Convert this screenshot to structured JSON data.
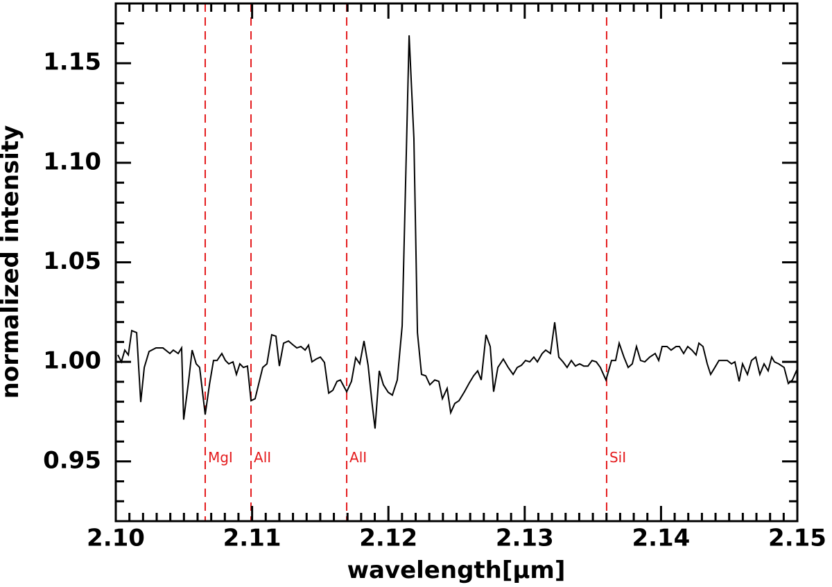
{
  "chart_data": {
    "type": "line",
    "xlabel": "wavelength[μm]",
    "ylabel": "normalized intensity",
    "xlim": [
      2.1,
      2.15
    ],
    "ylim": [
      0.92,
      1.18
    ],
    "xticks": [
      {
        "value": 2.1,
        "label": "2.10"
      },
      2.11,
      2.12,
      2.13,
      2.14,
      2.15
    ],
    "yticks": [
      0.95,
      {
        "value": 1.0,
        "label": "1.00"
      },
      1.05,
      {
        "value": 1.1,
        "label": "1.10"
      },
      1.15
    ],
    "xminorticks": [
      2.101,
      2.102,
      2.103,
      2.104,
      2.105,
      2.106,
      2.107,
      2.108,
      2.109,
      2.111,
      2.112,
      2.113,
      2.114,
      2.115,
      2.116,
      2.117,
      2.118,
      2.119,
      2.121,
      2.122,
      2.123,
      2.124,
      2.125,
      2.126,
      2.127,
      2.128,
      2.129,
      2.131,
      2.132,
      2.133,
      2.134,
      2.135,
      2.136,
      2.137,
      2.138,
      2.139,
      2.141,
      2.142,
      2.143,
      2.144,
      2.145,
      2.146,
      2.147,
      2.148,
      2.149
    ],
    "yminorticks": [
      0.93,
      0.94,
      0.96,
      0.97,
      0.98,
      0.99,
      1.01,
      1.02,
      1.03,
      1.04,
      1.06,
      1.07,
      1.08,
      1.09,
      1.11,
      1.12,
      1.13,
      1.14,
      1.16,
      1.17
    ],
    "color": "#000000",
    "x": [
      2.10015,
      2.10041,
      2.10066,
      2.10092,
      2.10117,
      2.10153,
      2.10183,
      2.10209,
      2.10244,
      2.10295,
      2.10346,
      2.10397,
      2.10422,
      2.10458,
      2.10483,
      2.10498,
      2.10534,
      2.1056,
      2.1059,
      2.10615,
      2.10656,
      2.10687,
      2.10717,
      2.10743,
      2.10778,
      2.10804,
      2.10829,
      2.1086,
      2.10885,
      2.1091,
      2.10936,
      2.10966,
      2.10992,
      2.11022,
      2.11053,
      2.11078,
      2.11109,
      2.11144,
      2.11175,
      2.112,
      2.11231,
      2.11267,
      2.11297,
      2.11328,
      2.11358,
      2.11389,
      2.11414,
      2.11439,
      2.1147,
      2.11501,
      2.11531,
      2.11562,
      2.11592,
      2.11623,
      2.11648,
      2.11694,
      2.11729,
      2.1176,
      2.1179,
      2.11821,
      2.11851,
      2.11882,
      2.11902,
      2.11933,
      2.11963,
      2.11999,
      2.12029,
      2.12065,
      2.12101,
      2.12152,
      2.12187,
      2.12213,
      2.12243,
      2.12274,
      2.12304,
      2.1234,
      2.1237,
      2.12396,
      2.12431,
      2.12457,
      2.12487,
      2.12518,
      2.12558,
      2.12594,
      2.12625,
      2.12655,
      2.12681,
      2.12716,
      2.12747,
      2.12772,
      2.12803,
      2.12843,
      2.12879,
      2.12915,
      2.12945,
      2.12976,
      2.13006,
      2.13037,
      2.13067,
      2.13093,
      2.13128,
      2.13154,
      2.13189,
      2.1322,
      2.1325,
      2.13281,
      2.13311,
      2.13342,
      2.13372,
      2.13403,
      2.13433,
      2.13464,
      2.13494,
      2.13525,
      2.13555,
      2.13596,
      2.13637,
      2.13667,
      2.13693,
      2.13728,
      2.13759,
      2.13789,
      2.1382,
      2.1385,
      2.13881,
      2.13917,
      2.13957,
      2.13983,
      2.14008,
      2.14044,
      2.14074,
      2.1411,
      2.14135,
      2.14166,
      2.14196,
      2.14227,
      2.14257,
      2.14278,
      2.14308,
      2.14339,
      2.14364,
      2.14395,
      2.14425,
      2.14456,
      2.14486,
      2.14517,
      2.14542,
      2.14573,
      2.14598,
      2.14634,
      2.14664,
      2.14695,
      2.14725,
      2.14756,
      2.14786,
      2.14812,
      2.14832,
      2.14863,
      2.14903,
      2.14934,
      2.14964,
      2.15
    ],
    "values": [
      1.0035,
      1.0,
      1.0059,
      1.0035,
      1.0157,
      1.0147,
      0.9798,
      0.9972,
      1.0052,
      1.007,
      1.007,
      1.0042,
      1.0059,
      1.0042,
      1.007,
      0.971,
      0.9902,
      1.0059,
      0.999,
      0.9972,
      0.9735,
      0.9885,
      1.0007,
      1.0007,
      1.0042,
      1.0007,
      0.999,
      1.0,
      0.9937,
      0.999,
      0.9972,
      0.9979,
      0.9805,
      0.9815,
      0.9902,
      0.9972,
      0.999,
      1.0136,
      1.0129,
      0.9979,
      1.0094,
      1.0105,
      1.0087,
      1.007,
      1.0077,
      1.0059,
      1.0084,
      1.0,
      1.0014,
      1.0024,
      0.9997,
      0.9843,
      0.9857,
      0.9902,
      0.9909,
      0.985,
      0.9902,
      1.0021,
      0.999,
      1.0105,
      0.9983,
      0.978,
      0.9665,
      0.9955,
      0.9885,
      0.9847,
      0.9833,
      0.9909,
      1.0181,
      1.164,
      1.1123,
      1.0147,
      0.9937,
      0.993,
      0.9885,
      0.9909,
      0.9902,
      0.9815,
      0.9867,
      0.9745,
      0.9791,
      0.9805,
      0.985,
      0.9895,
      0.993,
      0.9955,
      0.9909,
      1.0136,
      1.0077,
      0.985,
      0.9972,
      1.0014,
      0.9972,
      0.9937,
      0.9972,
      0.9983,
      1.0007,
      1.0,
      1.0024,
      1.0,
      1.0042,
      1.0059,
      1.0042,
      1.0199,
      1.0024,
      1.0,
      0.9972,
      1.0007,
      0.9979,
      0.999,
      0.9979,
      0.9979,
      1.0007,
      1.0,
      0.9972,
      0.9909,
      1.0007,
      1.0007,
      1.0094,
      1.0024,
      0.9972,
      0.999,
      1.0077,
      1.0007,
      1.0,
      1.0024,
      1.0042,
      1.0007,
      1.0077,
      1.0077,
      1.0059,
      1.0077,
      1.0077,
      1.0042,
      1.0077,
      1.0059,
      1.0035,
      1.0094,
      1.0077,
      0.999,
      0.9937,
      0.9972,
      1.0007,
      1.0007,
      1.0007,
      0.999,
      1.0,
      0.9902,
      0.999,
      0.9937,
      1.0007,
      1.0024,
      0.9937,
      0.999,
      0.9955,
      1.0024,
      1.0,
      0.999,
      0.9972,
      0.9891,
      0.9909,
      0.9965
    ],
    "line_color": "#e41a1c",
    "lines": [
      {
        "x": 2.10656,
        "label": "MgI"
      },
      {
        "x": 2.10992,
        "label": "AlI"
      },
      {
        "x": 2.11694,
        "label": "AlI"
      },
      {
        "x": 2.13601,
        "label": "SiI"
      }
    ]
  }
}
